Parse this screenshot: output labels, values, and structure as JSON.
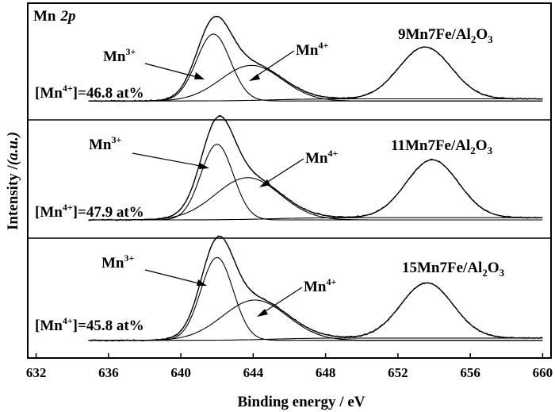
{
  "chart_data": {
    "type": "line",
    "xlabel": "Binding energy / eV",
    "ylabel_main": "Intensity /",
    "ylabel_unit": "(a.u.)",
    "x_ticks": [
      632,
      636,
      640,
      644,
      648,
      652,
      656,
      660
    ],
    "xlim": [
      631.8,
      660.2
    ],
    "grid": false,
    "region_label": {
      "element": "Mn",
      "orbital": "2p"
    },
    "panels": [
      {
        "sample": {
          "pre": "9Mn7Fe/Al",
          "sub1": "2",
          "mid": "O",
          "sub2": "3"
        },
        "fraction": {
          "pre": "[Mn",
          "sup": "4+",
          "post": "]=46.8 at%"
        },
        "mn3_label": {
          "base": "Mn",
          "sup": "3+"
        },
        "mn4_label": {
          "base": "Mn",
          "sup": "4+"
        },
        "baseline": 0.05,
        "peaks": [
          {
            "name": "Mn3+",
            "center": 641.8,
            "height": 0.62,
            "fwhm": 2.2
          },
          {
            "name": "Mn4+",
            "center": 643.9,
            "height": 0.33,
            "fwhm": 4.0
          },
          {
            "name": "Mn 2p1/2",
            "center": 653.5,
            "height": 0.48,
            "fwhm": 3.4
          }
        ]
      },
      {
        "sample": {
          "pre": "11Mn7Fe/Al",
          "sub1": "2",
          "mid": "O",
          "sub2": "3"
        },
        "fraction": {
          "pre": "[Mn",
          "sup": "4+",
          "post": "]=47.9 at%"
        },
        "mn3_label": {
          "base": "Mn",
          "sup": "3+"
        },
        "mn4_label": {
          "base": "Mn",
          "sup": "4+"
        },
        "baseline": 0.05,
        "peaks": [
          {
            "name": "Mn3+",
            "center": 642.0,
            "height": 0.68,
            "fwhm": 2.1
          },
          {
            "name": "Mn4+",
            "center": 643.7,
            "height": 0.38,
            "fwhm": 4.2
          },
          {
            "name": "Mn 2p1/2",
            "center": 653.9,
            "height": 0.52,
            "fwhm": 3.4
          }
        ]
      },
      {
        "sample": {
          "pre": "15Mn7Fe/Al",
          "sub1": "2",
          "mid": "O",
          "sub2": "3"
        },
        "fraction": {
          "pre": "[Mn",
          "sup": "4+",
          "post": "]=45.8 at%"
        },
        "mn3_label": {
          "base": "Mn",
          "sup": "3+"
        },
        "mn4_label": {
          "base": "Mn",
          "sup": "4+"
        },
        "baseline": 0.05,
        "peaks": [
          {
            "name": "Mn3+",
            "center": 642.0,
            "height": 0.72,
            "fwhm": 2.1
          },
          {
            "name": "Mn4+",
            "center": 644.1,
            "height": 0.35,
            "fwhm": 4.2
          },
          {
            "name": "Mn 2p1/2",
            "center": 653.6,
            "height": 0.48,
            "fwhm": 3.4
          }
        ]
      }
    ]
  }
}
